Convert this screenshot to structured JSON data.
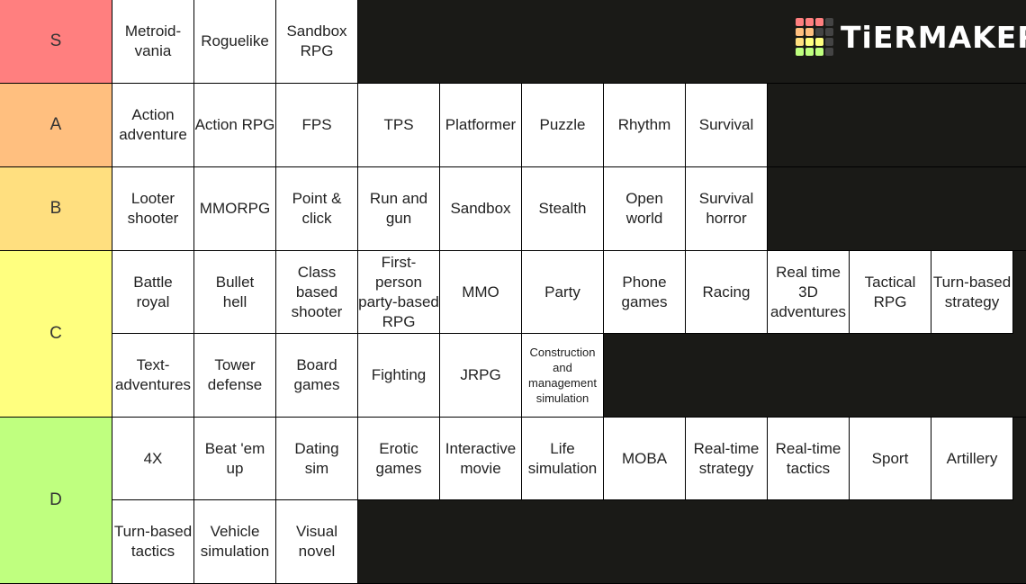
{
  "logo": {
    "text": "TiERMAKER"
  },
  "tiers": [
    {
      "label": "S",
      "color": "#ff7f7f",
      "items": [
        "Metroid-\nvania",
        "Roguelike",
        "Sandbox\nRPG"
      ]
    },
    {
      "label": "A",
      "color": "#ffbf7f",
      "items": [
        "Action\nadventure",
        "Action RPG",
        "FPS",
        "TPS",
        "Platformer",
        "Puzzle",
        "Rhythm",
        "Survival"
      ]
    },
    {
      "label": "B",
      "color": "#ffdf7f",
      "items": [
        "Looter\nshooter",
        "MMORPG",
        "Point &\nclick",
        "Run and\ngun",
        "Sandbox",
        "Stealth",
        "Open\nworld",
        "Survival\nhorror"
      ]
    },
    {
      "label": "C",
      "color": "#ffff7f",
      "items": [
        "Battle\nroyal",
        "Bullet\nhell",
        "Class\nbased\nshooter",
        "First-person\nparty-based\nRPG",
        "MMO",
        "Party",
        "Phone\ngames",
        "Racing",
        "Real time\n3D\nadventures",
        "Tactical RPG",
        "Turn-based\nstrategy",
        "Text-\nadventures",
        "Tower\ndefense",
        "Board\ngames",
        "Fighting",
        "JRPG",
        "Construction\nand\nmanagement\nsimulation"
      ]
    },
    {
      "label": "D",
      "color": "#bfff7f",
      "items": [
        "4X",
        "Beat 'em up",
        "Dating\nsim",
        "Erotic\ngames",
        "Interactive\nmovie",
        "Life\nsimulation",
        "MOBA",
        "Real-time\nstrategy",
        "Real-time\ntactics",
        "Sport",
        "Artillery",
        "Turn-based\ntactics",
        "Vehicle\nsimulation",
        "Visual\nnovel"
      ]
    }
  ]
}
